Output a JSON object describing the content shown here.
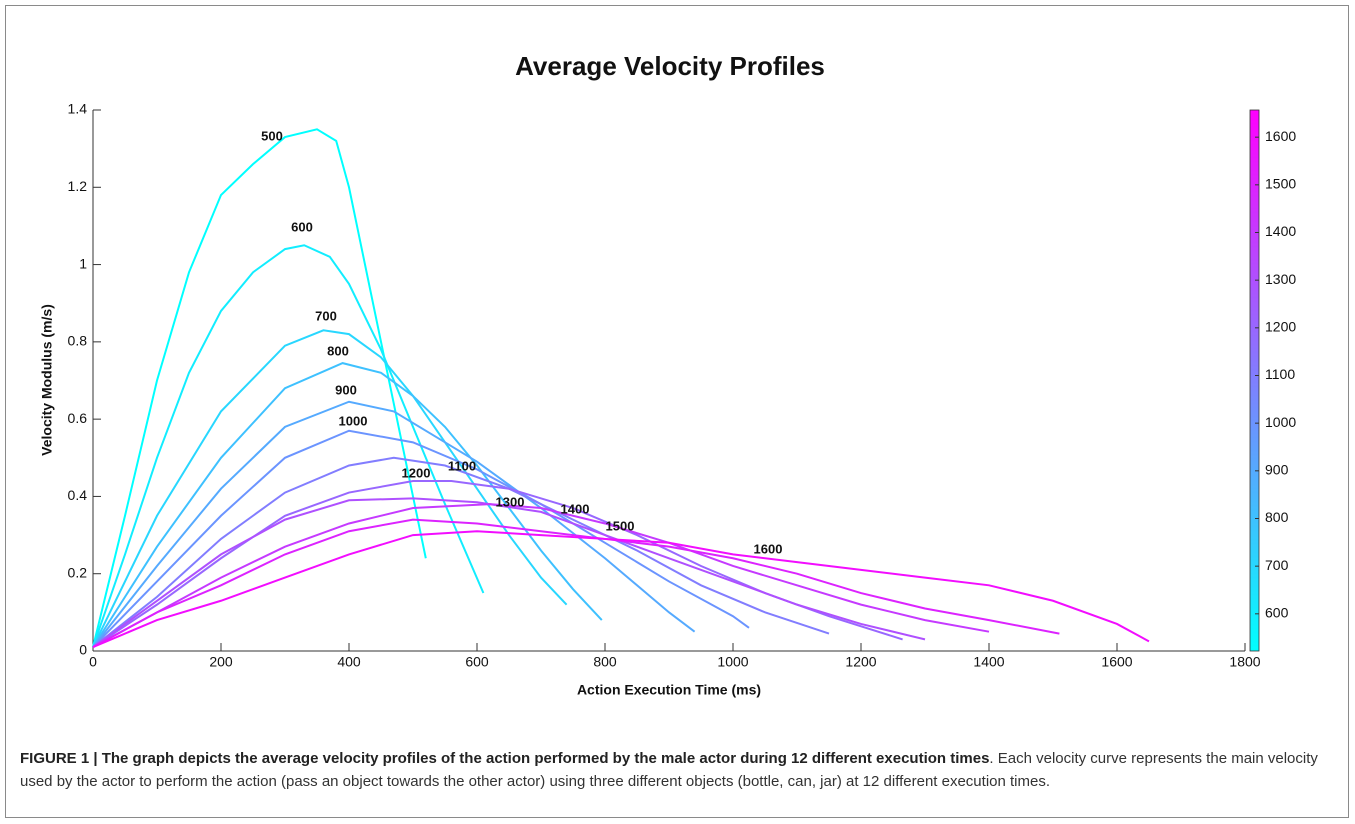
{
  "chart_data": {
    "type": "line",
    "title": "Average Velocity Profiles",
    "xlabel": "Action Execution Time (ms)",
    "ylabel": "Velocity Modulus (m/s)",
    "xlim": [
      0,
      1800
    ],
    "xticks": [
      0,
      200,
      400,
      600,
      800,
      1000,
      1200,
      1400,
      1600,
      1800
    ],
    "ylim": [
      0,
      1.4
    ],
    "yticks": [
      0,
      0.2,
      0.4,
      0.6,
      0.8,
      1,
      1.2,
      1.4
    ],
    "colorbar": {
      "colormap": [
        "#00ffff",
        "#ff00ff"
      ],
      "clim": [
        522,
        1657
      ],
      "ticks": [
        600,
        700,
        800,
        900,
        1000,
        1100,
        1200,
        1300,
        1400,
        1500,
        1600
      ]
    },
    "series": [
      {
        "name": "500",
        "color": "#00ffff",
        "x": [
          0,
          50,
          100,
          150,
          200,
          250,
          300,
          350,
          380,
          400,
          450,
          500,
          520
        ],
        "values": [
          0.01,
          0.35,
          0.7,
          0.98,
          1.18,
          1.26,
          1.33,
          1.35,
          1.32,
          1.2,
          0.8,
          0.4,
          0.24
        ]
      },
      {
        "name": "600",
        "color": "#12edff",
        "x": [
          0,
          50,
          100,
          150,
          200,
          250,
          300,
          330,
          370,
          400,
          450,
          500,
          550,
          610
        ],
        "values": [
          0.01,
          0.25,
          0.5,
          0.72,
          0.88,
          0.98,
          1.04,
          1.05,
          1.02,
          0.95,
          0.78,
          0.58,
          0.38,
          0.15
        ]
      },
      {
        "name": "700",
        "color": "#28d7ff",
        "x": [
          0,
          100,
          200,
          300,
          360,
          400,
          450,
          500,
          550,
          600,
          650,
          700,
          740
        ],
        "values": [
          0.01,
          0.35,
          0.62,
          0.79,
          0.83,
          0.82,
          0.76,
          0.66,
          0.54,
          0.42,
          0.3,
          0.19,
          0.12
        ]
      },
      {
        "name": "800",
        "color": "#3ec1ff",
        "x": [
          0,
          100,
          200,
          300,
          390,
          450,
          500,
          550,
          600,
          650,
          700,
          750,
          795
        ],
        "values": [
          0.01,
          0.27,
          0.5,
          0.68,
          0.745,
          0.72,
          0.66,
          0.58,
          0.48,
          0.37,
          0.26,
          0.16,
          0.08
        ]
      },
      {
        "name": "900",
        "color": "#55aaff",
        "x": [
          0,
          100,
          200,
          300,
          400,
          470,
          550,
          600,
          700,
          800,
          900,
          940
        ],
        "values": [
          0.01,
          0.22,
          0.42,
          0.58,
          0.645,
          0.62,
          0.54,
          0.49,
          0.37,
          0.24,
          0.1,
          0.05
        ]
      },
      {
        "name": "1000",
        "color": "#6b94ff",
        "x": [
          0,
          100,
          200,
          300,
          400,
          500,
          600,
          700,
          800,
          900,
          1000,
          1025
        ],
        "values": [
          0.01,
          0.18,
          0.35,
          0.5,
          0.57,
          0.54,
          0.47,
          0.38,
          0.28,
          0.18,
          0.09,
          0.06
        ]
      },
      {
        "name": "1100",
        "color": "#827dff",
        "x": [
          0,
          100,
          200,
          300,
          400,
          470,
          550,
          650,
          750,
          850,
          950,
          1050,
          1150
        ],
        "values": [
          0.01,
          0.14,
          0.29,
          0.41,
          0.48,
          0.5,
          0.48,
          0.42,
          0.34,
          0.26,
          0.17,
          0.1,
          0.045
        ]
      },
      {
        "name": "1200",
        "color": "#9867ff",
        "x": [
          0,
          100,
          200,
          300,
          400,
          500,
          560,
          650,
          750,
          850,
          950,
          1050,
          1150,
          1265
        ],
        "values": [
          0.01,
          0.12,
          0.24,
          0.35,
          0.41,
          0.44,
          0.44,
          0.42,
          0.37,
          0.3,
          0.22,
          0.15,
          0.09,
          0.03
        ]
      },
      {
        "name": "1300",
        "color": "#af50ff",
        "x": [
          0,
          100,
          200,
          300,
          400,
          500,
          600,
          700,
          800,
          900,
          1000,
          1100,
          1200,
          1300
        ],
        "values": [
          0.01,
          0.13,
          0.25,
          0.34,
          0.39,
          0.395,
          0.385,
          0.36,
          0.3,
          0.24,
          0.18,
          0.12,
          0.07,
          0.03
        ]
      },
      {
        "name": "1400",
        "color": "#c53aff",
        "x": [
          0,
          100,
          200,
          300,
          400,
          500,
          620,
          700,
          800,
          900,
          1000,
          1100,
          1200,
          1300,
          1400
        ],
        "values": [
          0.01,
          0.1,
          0.19,
          0.27,
          0.33,
          0.37,
          0.38,
          0.37,
          0.33,
          0.28,
          0.22,
          0.17,
          0.12,
          0.08,
          0.05
        ]
      },
      {
        "name": "1500",
        "color": "#dc23ff",
        "x": [
          0,
          100,
          200,
          300,
          400,
          500,
          600,
          700,
          800,
          900,
          1000,
          1100,
          1200,
          1300,
          1400,
          1510
        ],
        "values": [
          0.01,
          0.1,
          0.17,
          0.25,
          0.31,
          0.34,
          0.33,
          0.31,
          0.29,
          0.27,
          0.24,
          0.2,
          0.15,
          0.11,
          0.08,
          0.045
        ]
      },
      {
        "name": "1600",
        "color": "#f20dff",
        "x": [
          0,
          100,
          200,
          300,
          400,
          500,
          600,
          700,
          800,
          900,
          1000,
          1100,
          1200,
          1300,
          1400,
          1500,
          1600,
          1650
        ],
        "values": [
          0.01,
          0.08,
          0.13,
          0.19,
          0.25,
          0.3,
          0.31,
          0.3,
          0.29,
          0.28,
          0.25,
          0.23,
          0.21,
          0.19,
          0.17,
          0.13,
          0.07,
          0.025
        ]
      }
    ]
  },
  "caption": {
    "bold": "FIGURE 1 | The graph depicts the average velocity profiles of the action performed by the male actor during 12 different execution times",
    "text": ". Each velocity curve represents the main velocity used by the actor to perform the action (pass an object towards the other actor) using three different objects (bottle, can, jar) at 12 different execution times."
  }
}
